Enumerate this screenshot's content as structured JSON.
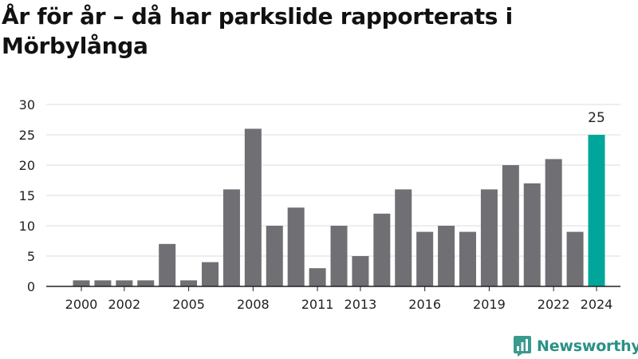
{
  "chart_data": {
    "type": "bar",
    "title": "År för år – då har parkslide rapporterats i Mörbylånga",
    "xlabel": "",
    "ylabel": "",
    "ylim": [
      0,
      30
    ],
    "yticks": [
      0,
      5,
      10,
      15,
      20,
      25,
      30
    ],
    "grid": true,
    "x": [
      2000,
      2001,
      2002,
      2003,
      2004,
      2005,
      2006,
      2007,
      2008,
      2009,
      2010,
      2011,
      2012,
      2013,
      2014,
      2015,
      2016,
      2017,
      2018,
      2019,
      2020,
      2021,
      2022,
      2023,
      2024
    ],
    "values": [
      1,
      1,
      1,
      1,
      7,
      1,
      4,
      16,
      26,
      10,
      13,
      3,
      10,
      5,
      12,
      16,
      9,
      10,
      9,
      16,
      20,
      17,
      21,
      9,
      25
    ],
    "xtick_labels": [
      "2000",
      "2002",
      "2005",
      "2008",
      "2011",
      "2013",
      "2016",
      "2019",
      "2022",
      "2024"
    ],
    "highlight": {
      "x": 2024,
      "label": "25"
    },
    "colors": {
      "bar": "#6f6f74",
      "highlight": "#00a69a",
      "grid": "#dddddd",
      "axis": "#222222",
      "text": "#222222"
    }
  },
  "brand": {
    "name": "Newsworthy"
  }
}
